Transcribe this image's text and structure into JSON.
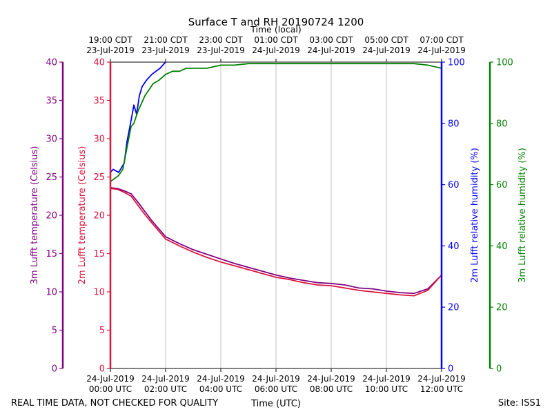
{
  "chart_data": {
    "type": "line",
    "title": "Surface T and RH 20190724 1200",
    "top_axis_label": "Time (local)",
    "bottom_axis_label": "Time (UTC)",
    "footer_left": "REAL TIME DATA, NOT CHECKED FOR QUALITY",
    "footer_right": "Site: ISS1",
    "x_range_hours": [
      0,
      12
    ],
    "utc_ticks": [
      {
        "hour": 0,
        "line1": "24-Jul-2019",
        "line2": "00:00 UTC"
      },
      {
        "hour": 2,
        "line1": "24-Jul-2019",
        "line2": "02:00 UTC"
      },
      {
        "hour": 4,
        "line1": "24-Jul-2019",
        "line2": "04:00 UTC"
      },
      {
        "hour": 6,
        "line1": "24-Jul-2019",
        "line2": "06:00 UTC"
      },
      {
        "hour": 8,
        "line1": "24-Jul-2019",
        "line2": "08:00 UTC"
      },
      {
        "hour": 10,
        "line1": "24-Jul-2019",
        "line2": "10:00 UTC"
      },
      {
        "hour": 12,
        "line1": "24-Jul-2019",
        "line2": "12:00 UTC"
      }
    ],
    "local_ticks": [
      {
        "hour": 0,
        "line1": "19:00 CDT",
        "line2": "23-Jul-2019"
      },
      {
        "hour": 2,
        "line1": "21:00 CDT",
        "line2": "23-Jul-2019"
      },
      {
        "hour": 4,
        "line1": "23:00 CDT",
        "line2": "23-Jul-2019"
      },
      {
        "hour": 6,
        "line1": "01:00 CDT",
        "line2": "24-Jul-2019"
      },
      {
        "hour": 8,
        "line1": "03:00 CDT",
        "line2": "24-Jul-2019"
      },
      {
        "hour": 10,
        "line1": "05:00 CDT",
        "line2": "24-Jul-2019"
      },
      {
        "hour": 12,
        "line1": "07:00 CDT",
        "line2": "24-Jul-2019"
      }
    ],
    "axes": {
      "temp3m": {
        "label": "3m Lufft temperature (Celsius)",
        "color": "#800080",
        "range": [
          0,
          40
        ],
        "ticks": [
          "0",
          "5",
          "10",
          "15",
          "20",
          "25",
          "30",
          "35",
          "40"
        ]
      },
      "temp2m": {
        "label": "2m Lufft temperature (Celsius)",
        "color": "#dc143c",
        "range": [
          0,
          40
        ],
        "ticks": [
          "0",
          "5",
          "10",
          "15",
          "20",
          "25",
          "30",
          "35",
          "40"
        ]
      },
      "rh2m": {
        "label": "2m Lufft relative humidity (%)",
        "color": "#0000ff",
        "range": [
          0,
          100
        ],
        "ticks": [
          "0",
          "20",
          "40",
          "60",
          "80",
          "100"
        ]
      },
      "rh3m": {
        "label": "3m Lufft relative humidity (%)",
        "color": "#008000",
        "range": [
          0,
          100
        ],
        "ticks": [
          "0",
          "20",
          "40",
          "60",
          "80",
          "100"
        ]
      }
    },
    "series": [
      {
        "name": "3m Lufft temperature",
        "axis": "temp3m",
        "color": "#800080",
        "x": [
          0,
          0.25,
          0.5,
          0.75,
          1,
          1.25,
          1.5,
          2,
          2.5,
          3,
          3.5,
          4,
          4.5,
          5,
          5.5,
          6,
          6.5,
          7,
          7.5,
          8,
          8.5,
          9,
          9.5,
          10,
          10.5,
          11,
          11.5,
          12
        ],
        "y": [
          23.6,
          23.5,
          23.2,
          22.8,
          21.7,
          20.5,
          19.3,
          17.2,
          16.3,
          15.5,
          14.9,
          14.3,
          13.7,
          13.2,
          12.7,
          12.2,
          11.8,
          11.5,
          11.2,
          11.1,
          10.9,
          10.5,
          10.4,
          10.1,
          9.9,
          9.8,
          10.4,
          12.2
        ]
      },
      {
        "name": "2m Lufft temperature",
        "axis": "temp2m",
        "color": "#dc143c",
        "x": [
          0,
          0.25,
          0.5,
          0.75,
          1,
          1.25,
          1.5,
          2,
          2.5,
          3,
          3.5,
          4,
          4.5,
          5,
          5.5,
          6,
          6.5,
          7,
          7.5,
          8,
          8.5,
          9,
          9.5,
          10,
          10.5,
          11,
          11.5,
          12
        ],
        "y": [
          23.5,
          23.4,
          23.0,
          22.5,
          21.3,
          20.1,
          19.0,
          16.9,
          16.0,
          15.2,
          14.5,
          13.9,
          13.4,
          12.9,
          12.4,
          11.9,
          11.6,
          11.2,
          10.9,
          10.8,
          10.5,
          10.2,
          10.0,
          9.8,
          9.6,
          9.5,
          10.2,
          12.2
        ]
      },
      {
        "name": "2m Lufft relative humidity",
        "axis": "rh2m",
        "color": "#0000ff",
        "x": [
          0,
          0.1,
          0.3,
          0.5,
          0.6,
          0.75,
          0.85,
          0.95,
          1.05,
          1.15,
          1.3,
          1.5,
          1.65,
          1.8,
          1.9,
          2.0
        ],
        "y": [
          64,
          65,
          64,
          67,
          74,
          81,
          86,
          83,
          89,
          92,
          94,
          96,
          97,
          98,
          99,
          100
        ]
      },
      {
        "name": "3m Lufft relative humidity",
        "axis": "rh3m",
        "color": "#008000",
        "x": [
          0,
          0.15,
          0.3,
          0.45,
          0.6,
          0.75,
          0.85,
          1.0,
          1.1,
          1.25,
          1.4,
          1.55,
          1.75,
          2.0,
          2.25,
          2.5,
          2.75,
          3.0,
          3.25,
          3.5,
          4.0,
          4.5,
          5.0,
          5.5,
          6.0,
          6.5,
          7.0,
          7.5,
          8.0,
          8.5,
          9.0,
          9.5,
          10.0,
          10.5,
          11.0,
          11.5,
          12.0
        ],
        "y": [
          61,
          62,
          63,
          65,
          72,
          79,
          80,
          84,
          86,
          89,
          91,
          93,
          94,
          96,
          97,
          97,
          98,
          98,
          98,
          98,
          99,
          99,
          99.5,
          99.5,
          99.5,
          99.5,
          99.5,
          99.5,
          99.5,
          99.5,
          99.5,
          99.5,
          99.5,
          99.5,
          99.5,
          99,
          98
        ]
      }
    ]
  }
}
